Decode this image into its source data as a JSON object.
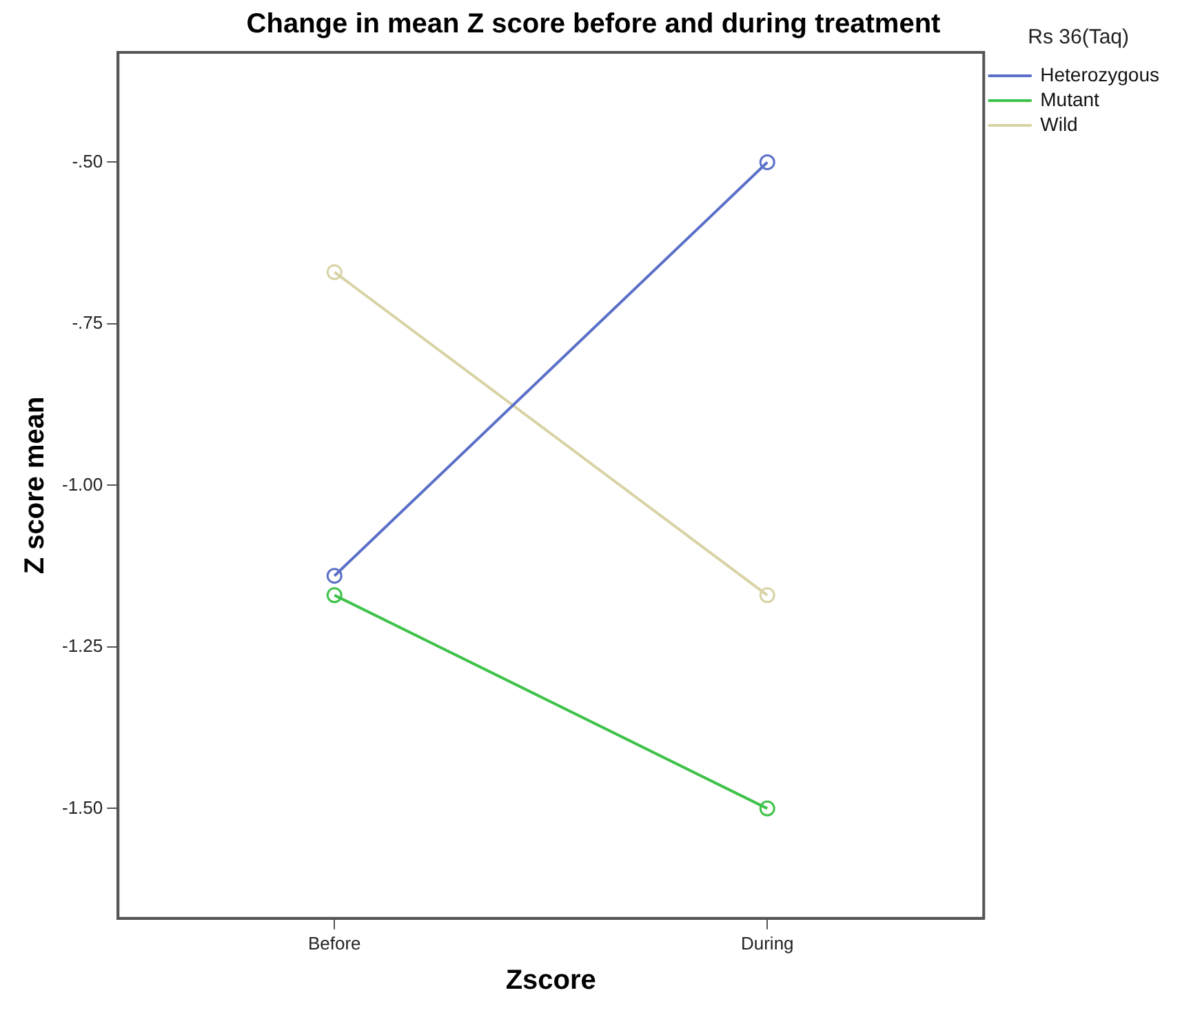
{
  "chart_data": {
    "type": "line",
    "title": "Change in mean Z score before and during treatment",
    "xlabel": "Zscore",
    "ylabel": "Z score mean",
    "legend_title": "Rs 36(Taq)",
    "legend": "top right",
    "grid": false,
    "marker": "circle",
    "line_style": "solid",
    "categories": [
      "Before",
      "During"
    ],
    "series": [
      {
        "name": "Heterozygous",
        "color": "#5a6fc8",
        "values": [
          -1.14,
          -0.5
        ]
      },
      {
        "name": "Mutant",
        "color": "#3fc24a",
        "values": [
          -1.17,
          -1.5
        ]
      },
      {
        "name": "Wild",
        "color": "#d8d3a4",
        "values": [
          -0.67,
          -1.17
        ]
      }
    ],
    "ylim": [
      -1.67,
      -0.33
    ],
    "yticks": [
      {
        "value": -0.5,
        "label": "-.50"
      },
      {
        "value": -0.75,
        "label": "-.75"
      },
      {
        "value": -1.0,
        "label": "-1.00"
      },
      {
        "value": -1.25,
        "label": "-1.25"
      },
      {
        "value": -1.5,
        "label": "-1.50"
      }
    ]
  }
}
